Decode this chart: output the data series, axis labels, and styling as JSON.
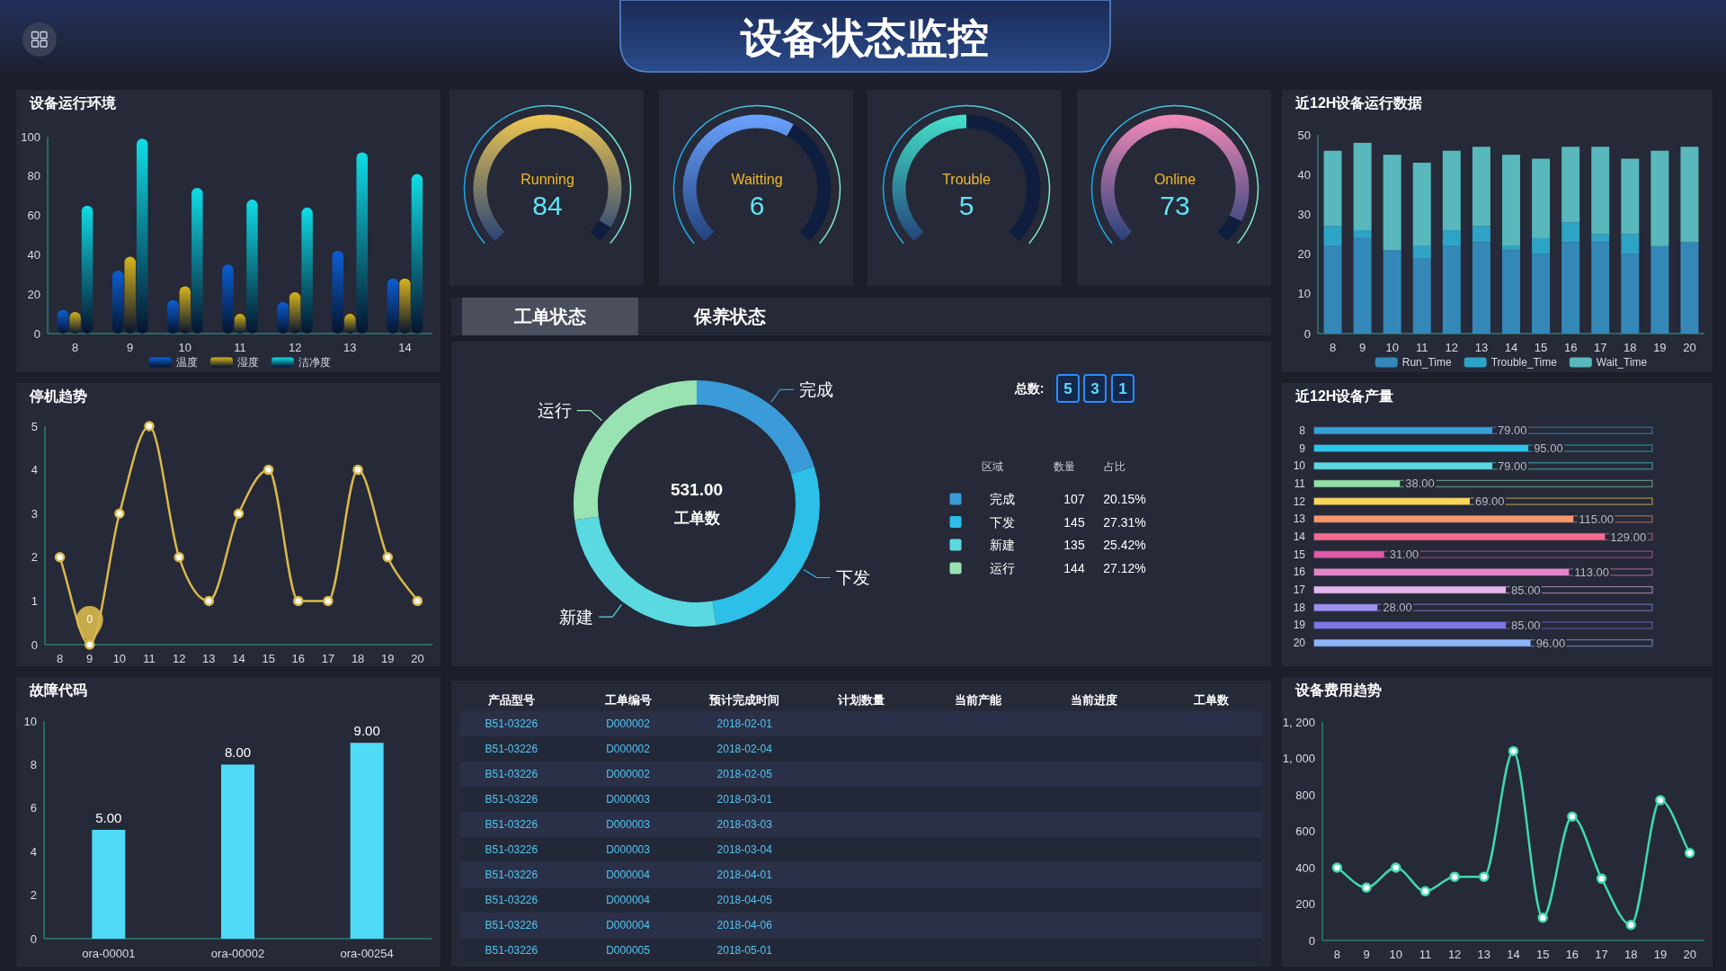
{
  "chart_data": [
    {
      "type": "other",
      "title": "设备状态监控"
    },
    {
      "type": "bar",
      "title": "设备运行环境",
      "categories": [
        "8",
        "9",
        "10",
        "11",
        "12",
        "13",
        "14"
      ],
      "series": [
        {
          "name": "温度",
          "color": "#0b5fd4",
          "values": [
            12,
            32,
            17,
            35,
            16,
            42,
            28
          ]
        },
        {
          "name": "湿度",
          "color": "#d8b41c",
          "values": [
            11,
            39,
            24,
            10,
            21,
            10,
            28
          ]
        },
        {
          "name": "洁净度",
          "color": "#10dde6",
          "values": [
            65,
            99,
            74,
            68,
            64,
            92,
            81
          ]
        }
      ],
      "ylim": [
        0,
        100
      ],
      "yticks": [
        0,
        20,
        40,
        60,
        80,
        100
      ],
      "legend": "bottom"
    },
    {
      "type": "donut",
      "title": "Running",
      "categories": [
        null,
        null
      ],
      "values": [
        95,
        5
      ],
      "colors": [
        "#f0c850",
        "#0f1e3e"
      ],
      "annotations": [
        "84"
      ]
    },
    {
      "type": "donut",
      "title": "Waitting",
      "categories": [
        null,
        null
      ],
      "values": [
        61,
        39
      ],
      "colors": [
        "#6aa2ff",
        "#0f1e3e"
      ],
      "annotations": [
        "6"
      ]
    },
    {
      "type": "donut",
      "title": "Trouble",
      "categories": [
        null,
        null
      ],
      "values": [
        50,
        50
      ],
      "colors": [
        "#44e2c8",
        "#0f1e3e"
      ],
      "annotations": [
        "5"
      ]
    },
    {
      "type": "donut",
      "title": "Online",
      "categories": [
        null,
        null
      ],
      "values": [
        93,
        7
      ],
      "colors": [
        "#f48ab8",
        "#0f1e3e"
      ],
      "annotations": [
        "73"
      ]
    },
    {
      "type": "bar",
      "stacked": true,
      "title": "近12H设备运行数据",
      "categories": [
        "8",
        "9",
        "10",
        "11",
        "12",
        "13",
        "14",
        "15",
        "16",
        "17",
        "18",
        "19",
        "20"
      ],
      "series": [
        {
          "name": "Run_Time",
          "color": "#3488b8",
          "values": [
            22,
            24,
            21,
            19,
            22,
            23,
            21,
            20,
            23,
            23,
            20,
            22,
            23
          ]
        },
        {
          "name": "Trouble_Time",
          "color": "#2da3c6",
          "values": [
            5,
            2,
            0,
            3,
            4,
            4,
            1,
            4,
            5,
            2,
            5,
            0,
            0
          ]
        },
        {
          "name": "Wait_Time",
          "color": "#58b8bc",
          "values": [
            19,
            22,
            24,
            21,
            20,
            20,
            23,
            20,
            19,
            22,
            19,
            24,
            24
          ]
        }
      ],
      "ylim": [
        0,
        50
      ],
      "yticks": [
        0,
        10,
        20,
        30,
        40,
        50
      ],
      "legend": "bottom"
    },
    {
      "type": "line",
      "title": "停机趋势",
      "categories": [
        "8",
        "9",
        "10",
        "11",
        "12",
        "13",
        "14",
        "15",
        "16",
        "17",
        "18",
        "19",
        "20"
      ],
      "series": [
        {
          "color": "#d9b84c",
          "values": [
            2,
            0,
            3,
            5,
            2,
            1,
            3,
            4,
            1,
            1,
            4,
            2,
            1
          ]
        }
      ],
      "ylim": [
        0,
        5
      ],
      "yticks": [
        0,
        1,
        2,
        3,
        4,
        5
      ],
      "marker": "circle",
      "annotations": [
        {
          "text": "0",
          "x": "9",
          "y": 0
        }
      ]
    },
    {
      "type": "other",
      "annotations": [
        "工单状态",
        "保养状态"
      ]
    },
    {
      "type": "donut",
      "categories": [
        "完成",
        "下发",
        "新建",
        "运行"
      ],
      "values": [
        107,
        145,
        135,
        144
      ],
      "colors": [
        "#3a9bd8",
        "#2cbfe7",
        "#5bd9e0",
        "#98e3b1"
      ],
      "data_labels": true,
      "legend": "right",
      "annotations": [
        "531.00",
        "工单数",
        "总数:",
        "5",
        "3",
        "1",
        "区域",
        "数量",
        "占比",
        "20.15%",
        "27.31%",
        "25.42%",
        "27.12%"
      ]
    },
    {
      "type": "bar",
      "orientation": "horizontal",
      "title": "近12H设备产量",
      "categories": [
        "8",
        "9",
        "10",
        "11",
        "12",
        "13",
        "14",
        "15",
        "16",
        "17",
        "18",
        "19",
        "20"
      ],
      "series": [
        {
          "colors": [
            "#35a0d8",
            "#2ec5ea",
            "#5ad8de",
            "#92e0a8",
            "#f8d65c",
            "#f8966e",
            "#f56c90",
            "#df5aa8",
            "#e287c8",
            "#e6b6ee",
            "#9e90f0",
            "#7d76e6",
            "#8cb6f8"
          ],
          "values": [
            79,
            95,
            79,
            38,
            69,
            115,
            129,
            31,
            113,
            85,
            28,
            85,
            96
          ],
          "value_labels": [
            "79.00",
            "95.00",
            "79.00",
            "38.00",
            "69.00",
            "115.00",
            "129.00",
            "31.00",
            "113.00",
            "85.00",
            "28.00",
            "85.00",
            "96.00"
          ]
        },
        {
          "colors": [
            "#35a0d8",
            "#2ec5ea",
            "#5ad8de",
            "#92e0a8",
            "#f8d65c",
            "#f8966e",
            "#f56c90",
            "#df5aa8",
            "#e287c8",
            "#e6b6ee",
            "#9e90f0",
            "#7d76e6",
            "#8cb6f8"
          ],
          "values": [
            150,
            150,
            150,
            150,
            150,
            150,
            150,
            150,
            150,
            150,
            150,
            150,
            150
          ]
        }
      ],
      "xlim": [
        0,
        150
      ],
      "tick_labels": "y"
    },
    {
      "type": "bar",
      "title": "故障代码",
      "categories": [
        "ora-00001",
        "ora-00002",
        "ora-00254"
      ],
      "values": [
        5,
        8,
        9
      ],
      "colors": [
        "#4fdaf7",
        "#4fdaf7",
        "#4fdaf7"
      ],
      "value_labels": [
        "5.00",
        "8.00",
        "9.00"
      ],
      "ylim": [
        0,
        10
      ],
      "yticks": [
        0,
        2,
        4,
        6,
        8,
        10
      ]
    },
    {
      "type": "other",
      "categories": [
        "产品型号",
        "工单编号",
        "预计完成时间",
        "计划数量",
        "当前产能",
        "当前进度",
        "工单数"
      ],
      "cell_labels": [
        [
          "B51-03226",
          "D000002",
          "2018-02-01",
          null,
          null,
          null,
          null
        ],
        [
          "B51-03226",
          "D000002",
          "2018-02-04",
          null,
          null,
          null,
          null
        ],
        [
          "B51-03226",
          "D000002",
          "2018-02-05",
          null,
          null,
          null,
          null
        ],
        [
          "B51-03226",
          "D000003",
          "2018-03-01",
          null,
          null,
          null,
          null
        ],
        [
          "B51-03226",
          "D000003",
          "2018-03-03",
          null,
          null,
          null,
          null
        ],
        [
          "B51-03226",
          "D000003",
          "2018-03-04",
          null,
          null,
          null,
          null
        ],
        [
          "B51-03226",
          "D000004",
          "2018-04-01",
          null,
          null,
          null,
          null
        ],
        [
          "B51-03226",
          "D000004",
          "2018-04-05",
          null,
          null,
          null,
          null
        ],
        [
          "B51-03226",
          "D000004",
          "2018-04-06",
          null,
          null,
          null,
          null
        ],
        [
          "B51-03226",
          "D000005",
          "2018-05-01",
          null,
          null,
          null,
          null
        ]
      ]
    },
    {
      "type": "line",
      "title": "设备费用趋势",
      "categories": [
        "8",
        "9",
        "10",
        "11",
        "12",
        "13",
        "14",
        "15",
        "16",
        "17",
        "18",
        "19",
        "20"
      ],
      "series": [
        {
          "color": "#3fd8ae",
          "values": [
            400,
            290,
            400,
            270,
            350,
            350,
            1040,
            125,
            680,
            340,
            85,
            770,
            480
          ]
        }
      ],
      "ylim": [
        0,
        1200
      ],
      "yticks": [
        0,
        200,
        400,
        600,
        800,
        {
          "value": 1000,
          "label": "1, 000"
        },
        {
          "value": 1200,
          "label": "1, 200"
        }
      ],
      "marker": "circle"
    }
  ]
}
